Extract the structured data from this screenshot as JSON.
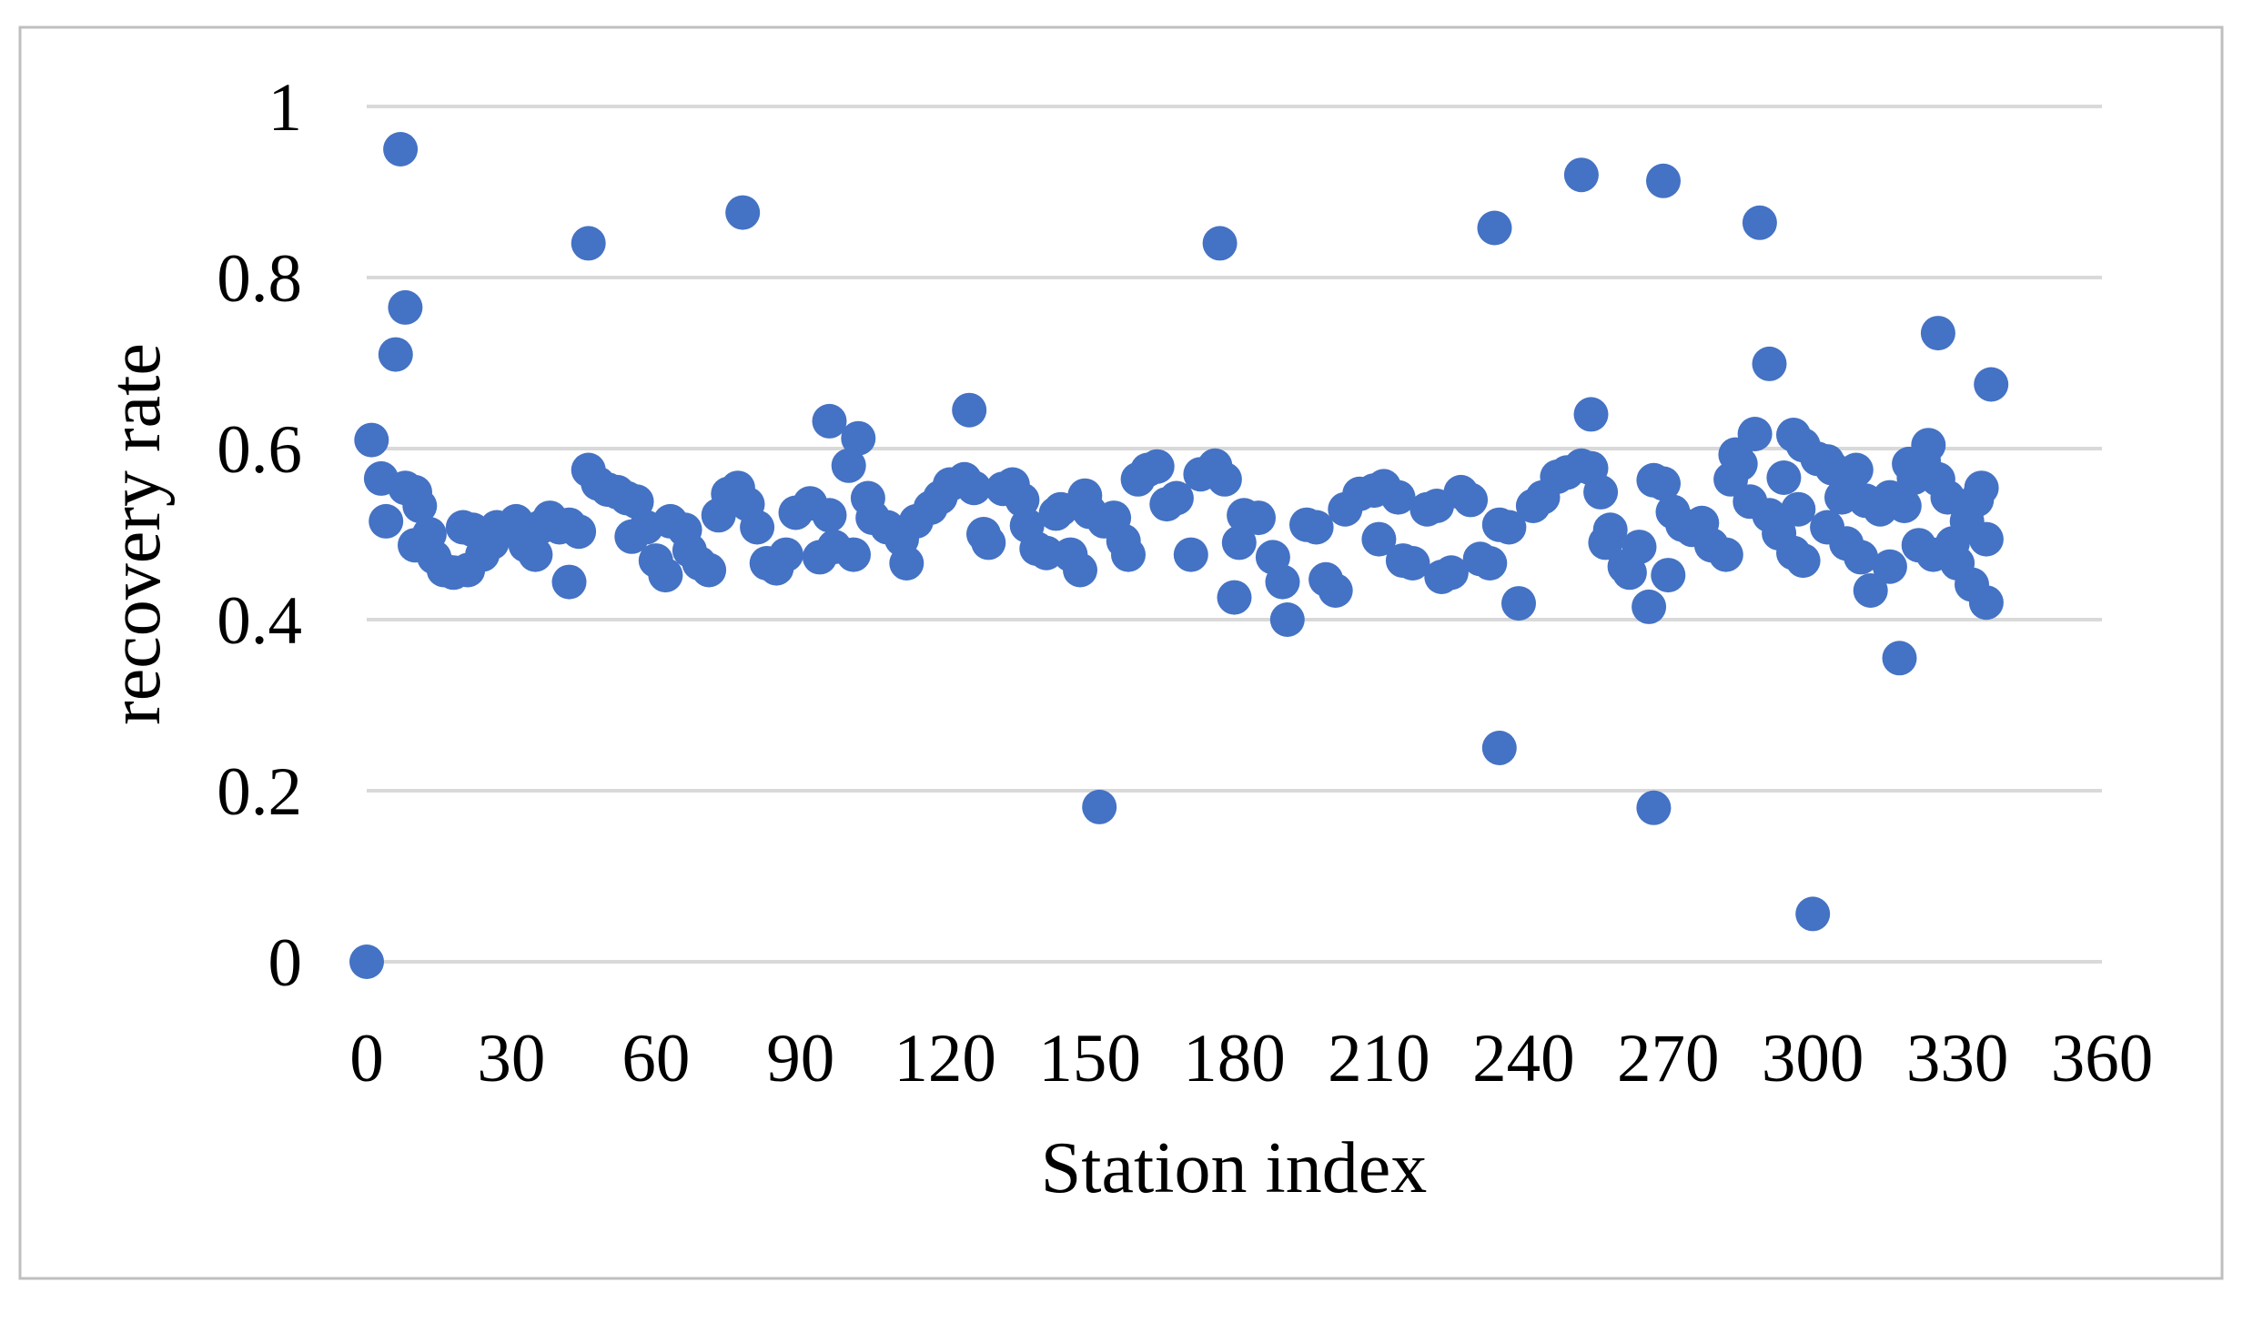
{
  "chart_data": {
    "type": "scatter",
    "title": "",
    "xlabel": "Station index",
    "ylabel": "recovery rate",
    "xlim": [
      0,
      360
    ],
    "ylim": [
      0,
      1
    ],
    "x_ticks": [
      0,
      30,
      60,
      90,
      120,
      150,
      180,
      210,
      240,
      270,
      300,
      330,
      360
    ],
    "y_ticks": [
      "0",
      "0.2",
      "0.4",
      "0.6",
      "0.8",
      "1"
    ],
    "y_tick_values": [
      0,
      0.2,
      0.4,
      0.6,
      0.8,
      1
    ],
    "grid": "horizontal",
    "legend": "none",
    "marker_color": "#4472C4",
    "gridline_color": "#D9D9D9",
    "border_color": "#BFBFBF",
    "points": [
      [
        0,
        0.0
      ],
      [
        1,
        0.61
      ],
      [
        3,
        0.565
      ],
      [
        4,
        0.515
      ],
      [
        6,
        0.71
      ],
      [
        7,
        0.95
      ],
      [
        8,
        0.765
      ],
      [
        8,
        0.554
      ],
      [
        10,
        0.549
      ],
      [
        10,
        0.487
      ],
      [
        11,
        0.533
      ],
      [
        13,
        0.5
      ],
      [
        14,
        0.473
      ],
      [
        16,
        0.458
      ],
      [
        18,
        0.455
      ],
      [
        20,
        0.508
      ],
      [
        21,
        0.458
      ],
      [
        22,
        0.505
      ],
      [
        24,
        0.476
      ],
      [
        26,
        0.49
      ],
      [
        27,
        0.508
      ],
      [
        29,
        0.505
      ],
      [
        31,
        0.515
      ],
      [
        33,
        0.487
      ],
      [
        35,
        0.476
      ],
      [
        36,
        0.508
      ],
      [
        38,
        0.519
      ],
      [
        40,
        0.508
      ],
      [
        42,
        0.511
      ],
      [
        42,
        0.444
      ],
      [
        44,
        0.503
      ],
      [
        46,
        0.84
      ],
      [
        46,
        0.575
      ],
      [
        48,
        0.559
      ],
      [
        50,
        0.552
      ],
      [
        52,
        0.549
      ],
      [
        54,
        0.542
      ],
      [
        55,
        0.497
      ],
      [
        56,
        0.538
      ],
      [
        58,
        0.508
      ],
      [
        60,
        0.469
      ],
      [
        62,
        0.452
      ],
      [
        63,
        0.515
      ],
      [
        66,
        0.505
      ],
      [
        67,
        0.481
      ],
      [
        69,
        0.466
      ],
      [
        71,
        0.458
      ],
      [
        73,
        0.522
      ],
      [
        75,
        0.547
      ],
      [
        77,
        0.554
      ],
      [
        78,
        0.876
      ],
      [
        79,
        0.535
      ],
      [
        81,
        0.508
      ],
      [
        83,
        0.466
      ],
      [
        85,
        0.46
      ],
      [
        87,
        0.476
      ],
      [
        89,
        0.525
      ],
      [
        92,
        0.536
      ],
      [
        94,
        0.473
      ],
      [
        96,
        0.632
      ],
      [
        96,
        0.522
      ],
      [
        97,
        0.485
      ],
      [
        100,
        0.58
      ],
      [
        101,
        0.476
      ],
      [
        102,
        0.612
      ],
      [
        104,
        0.542
      ],
      [
        105,
        0.519
      ],
      [
        108,
        0.508
      ],
      [
        111,
        0.494
      ],
      [
        112,
        0.466
      ],
      [
        114,
        0.515
      ],
      [
        117,
        0.531
      ],
      [
        119,
        0.543
      ],
      [
        121,
        0.558
      ],
      [
        124,
        0.564
      ],
      [
        125,
        0.645
      ],
      [
        126,
        0.554
      ],
      [
        128,
        0.5
      ],
      [
        129,
        0.49
      ],
      [
        132,
        0.553
      ],
      [
        134,
        0.558
      ],
      [
        136,
        0.54
      ],
      [
        137,
        0.51
      ],
      [
        139,
        0.483
      ],
      [
        141,
        0.478
      ],
      [
        143,
        0.524
      ],
      [
        144,
        0.529
      ],
      [
        146,
        0.476
      ],
      [
        148,
        0.458
      ],
      [
        149,
        0.545
      ],
      [
        150,
        0.526
      ],
      [
        152,
        0.181
      ],
      [
        153,
        0.515
      ],
      [
        155,
        0.519
      ],
      [
        157,
        0.492
      ],
      [
        158,
        0.476
      ],
      [
        160,
        0.564
      ],
      [
        162,
        0.575
      ],
      [
        164,
        0.579
      ],
      [
        166,
        0.535
      ],
      [
        168,
        0.542
      ],
      [
        171,
        0.476
      ],
      [
        173,
        0.57
      ],
      [
        176,
        0.58
      ],
      [
        177,
        0.84
      ],
      [
        178,
        0.564
      ],
      [
        180,
        0.426
      ],
      [
        181,
        0.49
      ],
      [
        182,
        0.522
      ],
      [
        185,
        0.519
      ],
      [
        188,
        0.473
      ],
      [
        190,
        0.444
      ],
      [
        191,
        0.4
      ],
      [
        195,
        0.511
      ],
      [
        197,
        0.508
      ],
      [
        199,
        0.447
      ],
      [
        201,
        0.434
      ],
      [
        203,
        0.529
      ],
      [
        206,
        0.547
      ],
      [
        209,
        0.551
      ],
      [
        210,
        0.494
      ],
      [
        211,
        0.556
      ],
      [
        214,
        0.543
      ],
      [
        215,
        0.469
      ],
      [
        217,
        0.466
      ],
      [
        220,
        0.529
      ],
      [
        222,
        0.533
      ],
      [
        223,
        0.45
      ],
      [
        225,
        0.455
      ],
      [
        227,
        0.549
      ],
      [
        229,
        0.54
      ],
      [
        231,
        0.471
      ],
      [
        233,
        0.466
      ],
      [
        234,
        0.858
      ],
      [
        235,
        0.511
      ],
      [
        235,
        0.25
      ],
      [
        237,
        0.508
      ],
      [
        239,
        0.419
      ],
      [
        242,
        0.533
      ],
      [
        244,
        0.543
      ],
      [
        247,
        0.567
      ],
      [
        249,
        0.572
      ],
      [
        252,
        0.92
      ],
      [
        252,
        0.58
      ],
      [
        254,
        0.64
      ],
      [
        254,
        0.577
      ],
      [
        256,
        0.549
      ],
      [
        257,
        0.49
      ],
      [
        258,
        0.505
      ],
      [
        261,
        0.462
      ],
      [
        262,
        0.455
      ],
      [
        264,
        0.485
      ],
      [
        266,
        0.415
      ],
      [
        267,
        0.18
      ],
      [
        267,
        0.563
      ],
      [
        269,
        0.913
      ],
      [
        269,
        0.559
      ],
      [
        270,
        0.452
      ],
      [
        271,
        0.526
      ],
      [
        273,
        0.511
      ],
      [
        275,
        0.505
      ],
      [
        277,
        0.513
      ],
      [
        279,
        0.487
      ],
      [
        282,
        0.476
      ],
      [
        283,
        0.564
      ],
      [
        284,
        0.593
      ],
      [
        285,
        0.582
      ],
      [
        287,
        0.538
      ],
      [
        288,
        0.617
      ],
      [
        289,
        0.864
      ],
      [
        291,
        0.699
      ],
      [
        291,
        0.522
      ],
      [
        293,
        0.501
      ],
      [
        294,
        0.566
      ],
      [
        296,
        0.616
      ],
      [
        296,
        0.478
      ],
      [
        297,
        0.529
      ],
      [
        298,
        0.604
      ],
      [
        298,
        0.469
      ],
      [
        300,
        0.056
      ],
      [
        301,
        0.588
      ],
      [
        303,
        0.585
      ],
      [
        303,
        0.508
      ],
      [
        304,
        0.577
      ],
      [
        306,
        0.543
      ],
      [
        307,
        0.489
      ],
      [
        309,
        0.575
      ],
      [
        310,
        0.473
      ],
      [
        311,
        0.539
      ],
      [
        312,
        0.434
      ],
      [
        314,
        0.529
      ],
      [
        316,
        0.543
      ],
      [
        316,
        0.462
      ],
      [
        318,
        0.355
      ],
      [
        319,
        0.533
      ],
      [
        320,
        0.582
      ],
      [
        321,
        0.566
      ],
      [
        322,
        0.487
      ],
      [
        323,
        0.586
      ],
      [
        324,
        0.604
      ],
      [
        325,
        0.476
      ],
      [
        326,
        0.735
      ],
      [
        326,
        0.564
      ],
      [
        328,
        0.543
      ],
      [
        329,
        0.489
      ],
      [
        330,
        0.466
      ],
      [
        332,
        0.515
      ],
      [
        333,
        0.441
      ],
      [
        334,
        0.54
      ],
      [
        335,
        0.554
      ],
      [
        336,
        0.494
      ],
      [
        336,
        0.42
      ],
      [
        337,
        0.675
      ]
    ]
  }
}
